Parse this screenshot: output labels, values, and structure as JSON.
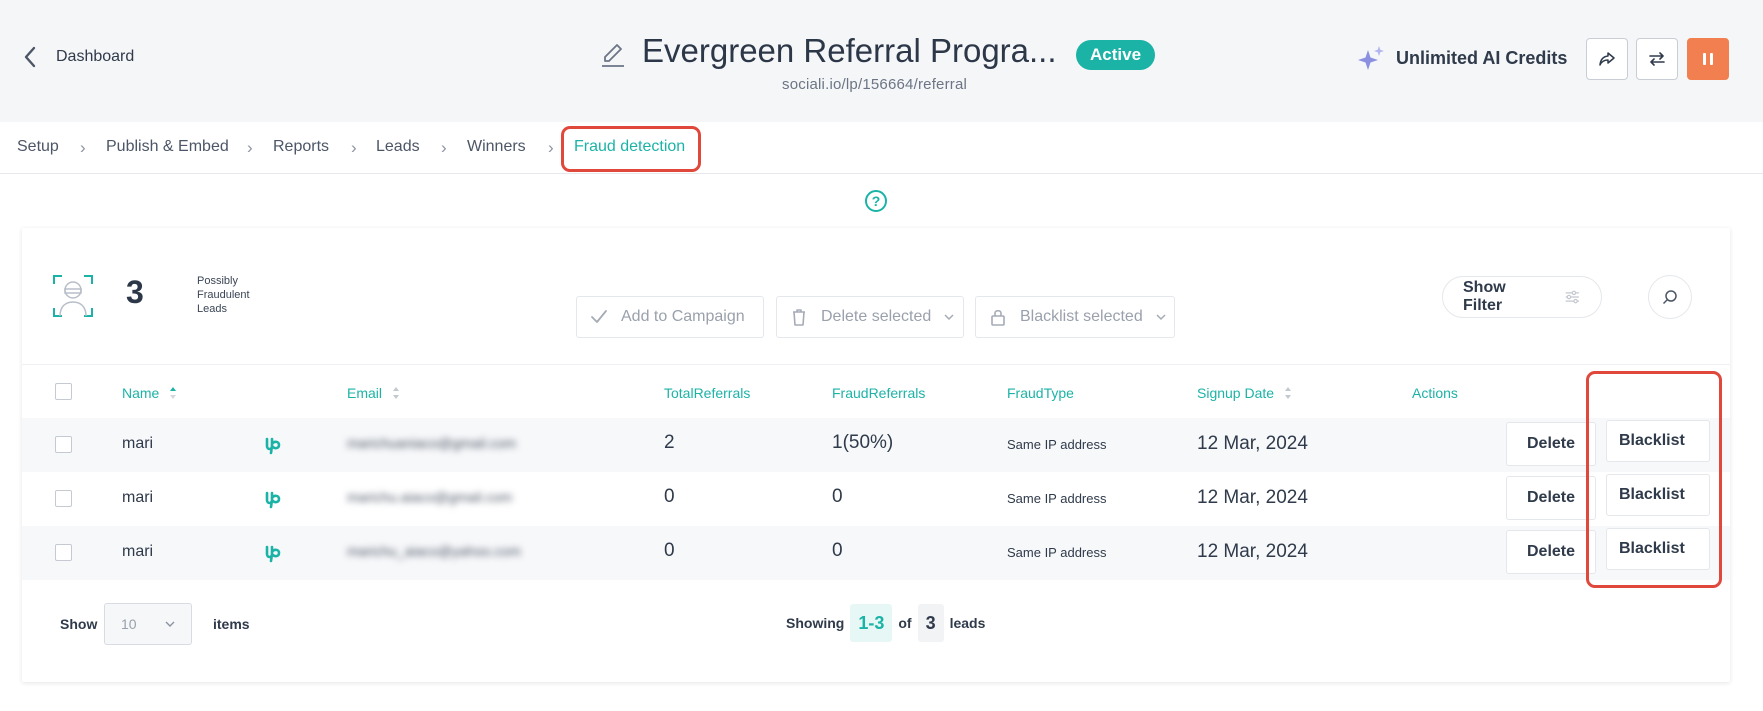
{
  "header": {
    "back_label": "Dashboard",
    "title": "Evergreen Referral Progra...",
    "status": "Active",
    "url": "sociali.io/lp/156664/referral",
    "ai_credits": "Unlimited AI Credits"
  },
  "breadcrumb": [
    "Setup",
    "Publish & Embed",
    "Reports",
    "Leads",
    "Winners",
    "Fraud detection"
  ],
  "summary": {
    "count": "3",
    "label_line1": "Possibly",
    "label_line2": "Fraudulent",
    "label_line3": "Leads"
  },
  "toolbar": {
    "add": "Add to Campaign",
    "delete": "Delete selected",
    "blacklist": "Blacklist selected",
    "filter": "Show Filter"
  },
  "table": {
    "columns": [
      "Name",
      "Email",
      "TotalReferrals",
      "FraudReferrals",
      "FraudType",
      "Signup Date",
      "Actions"
    ],
    "rows": [
      {
        "name": "mari",
        "email": "marichuaniaco@gmail.com",
        "total": "2",
        "fraud": "1(50%)",
        "type": "Same IP address",
        "date": "12 Mar, 2024",
        "delete": "Delete",
        "blacklist": "Blacklist"
      },
      {
        "name": "mari",
        "email": "marichu.aiaco@gmail.com",
        "total": "0",
        "fraud": "0",
        "type": "Same IP address",
        "date": "12 Mar, 2024",
        "delete": "Delete",
        "blacklist": "Blacklist"
      },
      {
        "name": "mari",
        "email": "marichu_aiaco@yahoo.com",
        "total": "0",
        "fraud": "0",
        "type": "Same IP address",
        "date": "12 Mar, 2024",
        "delete": "Delete",
        "blacklist": "Blacklist"
      }
    ]
  },
  "footer": {
    "show": "Show",
    "per_page": "10",
    "items": "items",
    "showing": "Showing",
    "range": "1-3",
    "of": "of",
    "total": "3",
    "leads": "leads"
  },
  "colors": {
    "accent": "#1cb3a7",
    "pause": "#f27f4f",
    "highlight": "#e0483c"
  }
}
